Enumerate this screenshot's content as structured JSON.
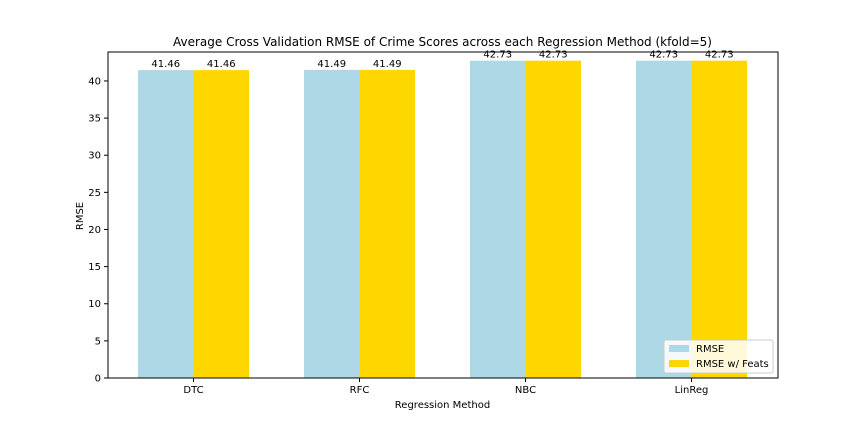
{
  "chart_data": {
    "type": "bar",
    "title": "Average Cross Validation RMSE of Crime Scores across each Regression Method (kfold=5)",
    "xlabel": "Regression Method",
    "ylabel": "RMSE",
    "categories": [
      "DTC",
      "RFC",
      "NBC",
      "LinReg"
    ],
    "series": [
      {
        "name": "RMSE",
        "values": [
          41.46,
          41.49,
          42.73,
          42.73
        ],
        "color": "#add8e6"
      },
      {
        "name": "RMSE w/ Feats",
        "values": [
          41.46,
          41.49,
          42.73,
          42.73
        ],
        "color": "#ffd700"
      }
    ],
    "data_labels": [
      [
        "41.46",
        "41.49",
        "42.73",
        "42.73"
      ],
      [
        "41.46",
        "41.49",
        "42.73",
        "42.73"
      ]
    ],
    "ylim": [
      0,
      43.9
    ],
    "yticks": [
      0,
      5,
      10,
      15,
      20,
      25,
      30,
      35,
      40
    ],
    "grid": false,
    "legend_position": "lower-right"
  }
}
